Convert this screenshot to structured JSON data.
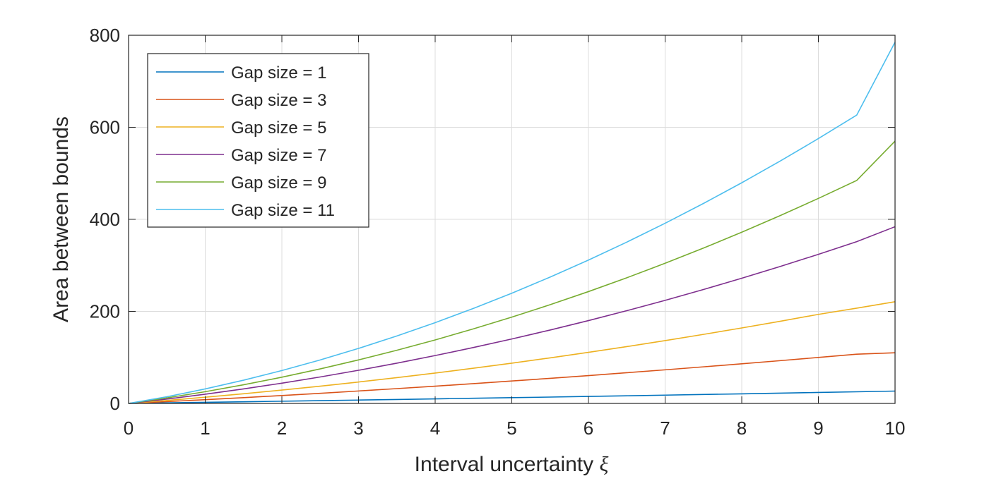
{
  "chart_data": {
    "type": "line",
    "title": "",
    "xlabel": "Interval uncertainty ",
    "xlabel_symbol": "ξ",
    "ylabel": "Area between bounds",
    "xlim": [
      0,
      10
    ],
    "ylim": [
      0,
      800
    ],
    "xticks": [
      "0",
      "1",
      "2",
      "3",
      "4",
      "5",
      "6",
      "7",
      "8",
      "9",
      "10"
    ],
    "yticks": [
      "0",
      "200",
      "400",
      "600",
      "800"
    ],
    "grid": true,
    "legend_position": "top-left",
    "x": [
      0,
      0.5,
      1,
      1.5,
      2,
      2.5,
      3,
      3.5,
      4,
      4.5,
      5,
      5.5,
      6,
      6.5,
      7,
      7.5,
      8,
      8.5,
      9,
      9.5,
      10
    ],
    "series": [
      {
        "name": "Gap size = 1",
        "color": "#0072BD",
        "values": [
          0,
          1.2,
          2.4,
          3.6,
          4.8,
          6.0,
          7.3,
          8.6,
          9.9,
          11.2,
          12.5,
          13.8,
          15.2,
          16.6,
          18.0,
          19.4,
          20.8,
          22.3,
          23.8,
          25.3,
          26.8
        ]
      },
      {
        "name": "Gap size = 3",
        "color": "#D95319",
        "values": [
          0,
          4.0,
          8.2,
          12.6,
          17.2,
          22.0,
          27.0,
          32.2,
          37.5,
          43.0,
          48.7,
          54.5,
          60.5,
          66.7,
          73.0,
          79.5,
          86.1,
          92.9,
          99.9,
          107.0,
          110.0
        ]
      },
      {
        "name": "Gap size = 5",
        "color": "#EDB120",
        "values": [
          0,
          6.5,
          13.5,
          21.0,
          29.0,
          37.5,
          46.5,
          56.0,
          66.0,
          76.5,
          87.5,
          99.0,
          111.0,
          123.5,
          136.5,
          150.0,
          164.0,
          178.5,
          193.5,
          207.0,
          221.0
        ]
      },
      {
        "name": "Gap size = 7",
        "color": "#7E2F8E",
        "values": [
          0,
          9.5,
          20.0,
          31.5,
          44.0,
          57.5,
          72.0,
          87.5,
          104.0,
          121.5,
          140.0,
          159.5,
          180.0,
          201.5,
          224.0,
          247.5,
          272.0,
          297.5,
          324.0,
          351.5,
          384.0
        ]
      },
      {
        "name": "Gap size = 9",
        "color": "#77AC30",
        "values": [
          0,
          12.0,
          25.5,
          40.5,
          57.0,
          75.0,
          94.5,
          115.5,
          138.0,
          162.0,
          187.5,
          214.5,
          243.0,
          273.0,
          304.5,
          337.5,
          372.0,
          408.0,
          445.5,
          484.5,
          570.0
        ]
      },
      {
        "name": "Gap size = 11",
        "color": "#4DBEEE",
        "values": [
          0,
          14.5,
          31.5,
          50.5,
          71.5,
          94.5,
          119.5,
          146.5,
          175.5,
          206.5,
          239.5,
          274.5,
          311.5,
          350.5,
          391.5,
          434.5,
          479.5,
          526.5,
          575.5,
          626.5,
          785.0
        ]
      }
    ]
  }
}
